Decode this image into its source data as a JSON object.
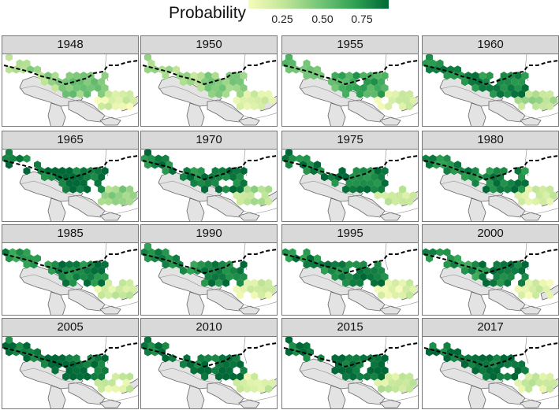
{
  "legend": {
    "title": "Probability",
    "ticks": [
      "0.25",
      "0.50",
      "0.75"
    ],
    "colors": [
      "#f7fcb9",
      "#c2e699",
      "#78c679",
      "#31a354",
      "#006837"
    ]
  },
  "panels": [
    {
      "year": "1948",
      "west": 0.35,
      "east": 0.45,
      "south": 0.1
    },
    {
      "year": "1950",
      "west": 0.3,
      "east": 0.4,
      "south": 0.08
    },
    {
      "year": "1955",
      "west": 0.55,
      "east": 0.7,
      "south": 0.12
    },
    {
      "year": "1960",
      "west": 0.85,
      "east": 0.85,
      "south": 0.3
    },
    {
      "year": "1965",
      "west": 0.9,
      "east": 0.95,
      "south": 0.4
    },
    {
      "year": "1970",
      "west": 0.88,
      "east": 0.92,
      "south": 0.3
    },
    {
      "year": "1975",
      "west": 0.9,
      "east": 0.9,
      "south": 0.2
    },
    {
      "year": "1980",
      "west": 0.85,
      "east": 0.88,
      "south": 0.15
    },
    {
      "year": "1985",
      "west": 0.8,
      "east": 0.88,
      "south": 0.15
    },
    {
      "year": "1990",
      "west": 0.8,
      "east": 0.9,
      "south": 0.12
    },
    {
      "year": "1995",
      "west": 0.85,
      "east": 0.9,
      "south": 0.12
    },
    {
      "year": "2000",
      "west": 0.8,
      "east": 0.9,
      "south": 0.12
    },
    {
      "year": "2005",
      "west": 0.92,
      "east": 0.95,
      "south": 0.15
    },
    {
      "year": "2010",
      "west": 0.92,
      "east": 0.97,
      "south": 0.15
    },
    {
      "year": "2015",
      "west": 0.95,
      "east": 0.97,
      "south": 0.18
    },
    {
      "year": "2017",
      "west": 0.93,
      "east": 0.96,
      "south": 0.15
    }
  ]
}
